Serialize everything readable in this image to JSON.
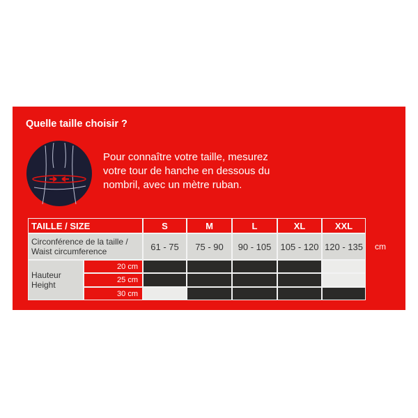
{
  "title": "Quelle taille choisir ?",
  "instructions": [
    "Pour connaître votre taille, mesurez",
    "votre tour de hanche en dessous du",
    "nombril, avec un mètre ruban."
  ],
  "table": {
    "header_label": "TAILLE / SIZE",
    "sizes": [
      "S",
      "M",
      "L",
      "XL",
      "XXL"
    ],
    "circumference_label": [
      "Circonférence de la taille /",
      "Waist circumference"
    ],
    "circumference_values": [
      "61 - 75",
      "75 - 90",
      "90 - 105",
      "105 - 120",
      "120 - 135"
    ],
    "unit": "cm",
    "height_label": [
      "Hauteur",
      "Height"
    ],
    "heights": [
      {
        "label": "20 cm",
        "available": [
          true,
          true,
          true,
          true,
          false
        ]
      },
      {
        "label": "25 cm",
        "available": [
          true,
          true,
          true,
          true,
          false
        ]
      },
      {
        "label": "30 cm",
        "available": [
          false,
          true,
          true,
          true,
          true
        ]
      }
    ]
  },
  "colors": {
    "panel": "#e8130f",
    "available": "#2b2a28",
    "unavailable": "#ececea",
    "row": "#d9d9d6"
  }
}
